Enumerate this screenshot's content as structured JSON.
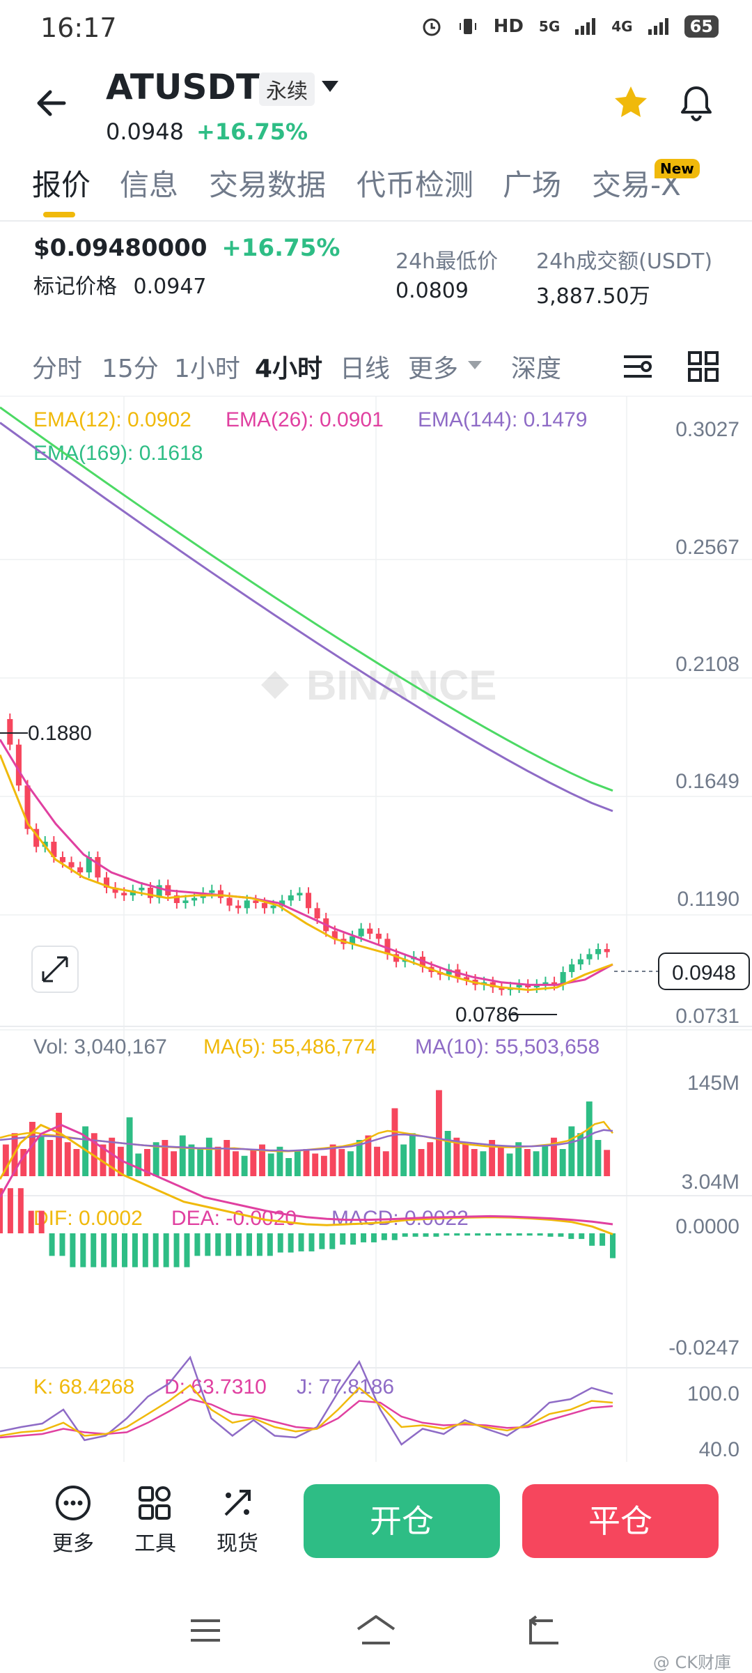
{
  "status_bar": {
    "time": "16:17",
    "hd": "HD",
    "sig1": "5G",
    "sig2": "4G",
    "battery": "65"
  },
  "header": {
    "symbol": "ATUSDT",
    "contract_type": "永续",
    "price": "0.0948",
    "change": "+16.75%"
  },
  "tabs": [
    {
      "label": "报价",
      "active": true
    },
    {
      "label": "信息"
    },
    {
      "label": "交易数据"
    },
    {
      "label": "代币检测"
    },
    {
      "label": "广场"
    },
    {
      "label": "交易-X",
      "badge": "New"
    }
  ],
  "stats": {
    "ticker_price": "$0.09480000",
    "ticker_change": "+16.75%",
    "mark_label": "标记价格",
    "mark_value": "0.0947",
    "low_label": "24h最低价",
    "low_value": "0.0809",
    "volume_label": "24h成交额(USDT)",
    "volume_value": "3,887.50万"
  },
  "intervals": [
    "分时",
    "15分",
    "1小时",
    "4小时",
    "日线",
    "更多",
    "深度"
  ],
  "active_interval": "4小时",
  "chart_data": [
    {
      "type": "candlestick",
      "indicators": {
        "ema12": "EMA(12): 0.0902",
        "ema26": "EMA(26): 0.0901",
        "ema144": "EMA(144): 0.1479",
        "ema169": "EMA(169): 0.1618"
      },
      "price_axis": [
        "0.3027",
        "0.2567",
        "0.2108",
        "0.1649",
        "0.1190",
        "0.0731"
      ],
      "high_marker": "0.1880",
      "low_marker": "0.0786",
      "current_price": "0.0948",
      "watermark": "BINANCE",
      "ema169_endpoints": [
        0.308,
        0.158
      ],
      "ema144_endpoints": [
        0.302,
        0.15
      ],
      "ema26_shape": [
        0.178,
        0.16,
        0.145,
        0.133,
        0.126,
        0.122,
        0.119,
        0.118,
        0.117,
        0.116,
        0.114,
        0.109,
        0.104,
        0.1,
        0.096,
        0.092,
        0.088,
        0.085,
        0.083,
        0.082,
        0.082,
        0.084,
        0.09
      ],
      "ema12_shape": [
        0.172,
        0.145,
        0.131,
        0.124,
        0.12,
        0.118,
        0.116,
        0.117,
        0.117,
        0.116,
        0.113,
        0.106,
        0.1,
        0.097,
        0.094,
        0.09,
        0.086,
        0.083,
        0.081,
        0.08,
        0.081,
        0.086,
        0.09
      ],
      "closes": [
        0.176,
        0.16,
        0.143,
        0.136,
        0.138,
        0.132,
        0.13,
        0.128,
        0.126,
        0.132,
        0.124,
        0.12,
        0.118,
        0.117,
        0.119,
        0.12,
        0.116,
        0.121,
        0.117,
        0.114,
        0.115,
        0.116,
        0.118,
        0.119,
        0.116,
        0.113,
        0.112,
        0.115,
        0.114,
        0.112,
        0.113,
        0.115,
        0.117,
        0.118,
        0.112,
        0.108,
        0.103,
        0.1,
        0.098,
        0.101,
        0.104,
        0.102,
        0.1,
        0.094,
        0.091,
        0.092,
        0.093,
        0.089,
        0.087,
        0.086,
        0.088,
        0.085,
        0.084,
        0.082,
        0.083,
        0.081,
        0.08,
        0.081,
        0.082,
        0.081,
        0.082,
        0.083,
        0.082,
        0.087,
        0.09,
        0.092,
        0.094,
        0.096,
        0.0948
      ]
    },
    {
      "type": "bar",
      "labels": {
        "vol": "Vol: 3,040,167",
        "ma5": "MA(5): 55,486,774",
        "ma10": "MA(10): 55,503,658"
      },
      "axis": [
        "145M",
        "3.04M"
      ],
      "volumes": [
        70,
        95,
        60,
        120,
        90,
        80,
        140,
        75,
        60,
        110,
        95,
        70,
        85,
        65,
        130,
        50,
        60,
        75,
        80,
        55,
        90,
        70,
        60,
        85,
        65,
        80,
        55,
        45,
        60,
        70,
        50,
        65,
        40,
        55,
        60,
        50,
        45,
        70,
        60,
        55,
        80,
        90,
        65,
        55,
        150,
        70,
        95,
        60,
        75,
        190,
        100,
        85,
        70,
        60,
        55,
        80,
        65,
        50,
        75,
        60,
        55,
        70,
        85,
        60,
        110,
        95,
        165,
        80,
        58
      ],
      "ma5": [
        85,
        90,
        92,
        95,
        96,
        92,
        90,
        88,
        85,
        82,
        80,
        78,
        76,
        74,
        72,
        70,
        68,
        66,
        65,
        64,
        63,
        62,
        61,
        60,
        60,
        61,
        62,
        60,
        58,
        57,
        56,
        55,
        55,
        56,
        58,
        60,
        62,
        64,
        66,
        70,
        75,
        85,
        95,
        100,
        98,
        95,
        92,
        88,
        84,
        80,
        76,
        73,
        70,
        68,
        66,
        65,
        64,
        64,
        65,
        66,
        68,
        70,
        74,
        78,
        88,
        100,
        115,
        120,
        95
      ],
      "ma10": [
        80,
        82,
        84,
        86,
        88,
        89,
        88,
        86,
        84,
        82,
        80,
        78,
        76,
        74,
        72,
        70,
        68,
        67,
        66,
        65,
        64,
        63,
        62,
        62,
        61,
        61,
        60,
        60,
        59,
        58,
        57,
        57,
        56,
        57,
        58,
        59,
        60,
        62,
        64,
        66,
        70,
        76,
        82,
        88,
        92,
        92,
        90,
        88,
        85,
        82,
        79,
        76,
        74,
        72,
        70,
        68,
        67,
        66,
        66,
        66,
        67,
        68,
        70,
        73,
        78,
        86,
        96,
        102,
        100
      ]
    },
    {
      "type": "line",
      "labels": {
        "dif": "DIF: 0.0002",
        "dea": "DEA: -0.0020",
        "macd": "MACD: 0.0022"
      },
      "axis": [
        "0.0000",
        "-0.0247"
      ],
      "dif": [
        -0.012,
        -0.02,
        -0.024,
        -0.022,
        -0.019,
        -0.016,
        -0.013,
        -0.011,
        -0.009,
        -0.007,
        -0.006,
        -0.005,
        -0.004,
        -0.003,
        -0.0025,
        -0.002,
        -0.0018,
        -0.002,
        -0.0022,
        -0.0025,
        -0.003,
        -0.0032,
        -0.0034,
        -0.0035,
        -0.0036,
        -0.0035,
        -0.0033,
        -0.003,
        -0.0025,
        -0.0015,
        0.0002
      ],
      "dea": [
        -0.008,
        -0.016,
        -0.022,
        -0.024,
        -0.022,
        -0.019,
        -0.016,
        -0.014,
        -0.012,
        -0.01,
        -0.008,
        -0.007,
        -0.006,
        -0.005,
        -0.0042,
        -0.0036,
        -0.0032,
        -0.003,
        -0.003,
        -0.0031,
        -0.0033,
        -0.0035,
        -0.0036,
        -0.0037,
        -0.0038,
        -0.0037,
        -0.0035,
        -0.0033,
        -0.003,
        -0.0026,
        -0.002
      ]
    },
    {
      "type": "line",
      "labels": {
        "k": "K: 68.4268",
        "d": "D: 63.7310",
        "j": "J: 77.8186"
      },
      "axis": [
        "100.0",
        "40.0"
      ],
      "k": [
        30,
        34,
        36,
        45,
        30,
        32,
        40,
        55,
        70,
        88,
        60,
        45,
        50,
        40,
        35,
        38,
        60,
        85,
        65,
        40,
        42,
        38,
        45,
        40,
        36,
        42,
        55,
        60,
        70,
        68
      ],
      "d": [
        28,
        30,
        32,
        38,
        34,
        32,
        34,
        45,
        58,
        72,
        66,
        55,
        52,
        46,
        40,
        38,
        50,
        70,
        68,
        52,
        45,
        42,
        43,
        42,
        39,
        40,
        48,
        55,
        62,
        64
      ],
      "j": [
        35,
        40,
        44,
        60,
        25,
        30,
        50,
        75,
        90,
        120,
        50,
        30,
        48,
        30,
        28,
        40,
        80,
        115,
        60,
        20,
        38,
        32,
        48,
        38,
        30,
        46,
        68,
        72,
        85,
        78
      ]
    }
  ],
  "bottom_bar": {
    "more": "更多",
    "tools": "工具",
    "spot": "现货",
    "open": "开仓",
    "close": "平仓"
  },
  "watermark_footer": "@ CK财庫",
  "colors": {
    "up": "#2ebd85",
    "down": "#f6465d",
    "ema12": "#f0b90b",
    "ema26": "#e040a0",
    "ema144": "#8e6bc6",
    "ema169": "#4cd964",
    "brand": "#f0b90b"
  }
}
